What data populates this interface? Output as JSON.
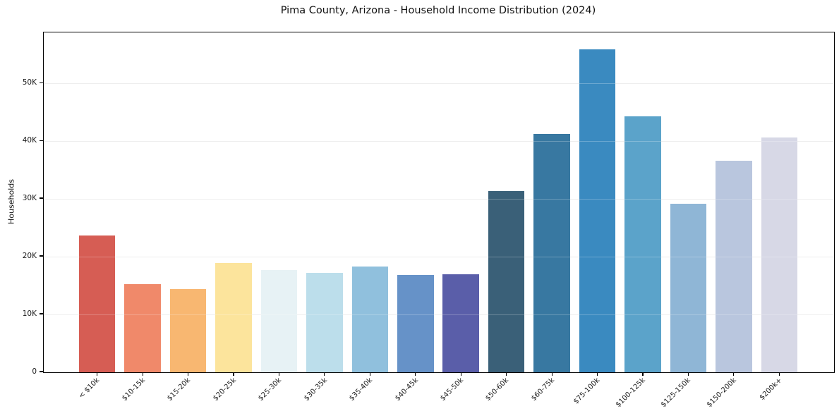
{
  "chart_data": {
    "type": "bar",
    "title": "Pima County, Arizona - Household Income Distribution (2024)",
    "xlabel": "",
    "ylabel": "Households",
    "categories": [
      "< $10k",
      "$10-15k",
      "$15-20k",
      "$20-25k",
      "$25-30k",
      "$30-35k",
      "$35-40k",
      "$40-45k",
      "$45-50k",
      "$50-60k",
      "$60-75k",
      "$75-100k",
      "$100-125k",
      "$125-150k",
      "$150-200k",
      "$200k+"
    ],
    "values": [
      23700,
      15200,
      14400,
      18900,
      17700,
      17200,
      18300,
      16800,
      17000,
      31400,
      41200,
      55900,
      44300,
      29100,
      36600,
      40600
    ],
    "bar_colors": [
      "#d65d54",
      "#f0896a",
      "#f8b771",
      "#fce49c",
      "#e7f2f5",
      "#bcdeeb",
      "#90c0dd",
      "#6692c8",
      "#5a5ea9",
      "#3a6078",
      "#3878a1",
      "#3a8ac0",
      "#5ba3ca",
      "#8fb6d6",
      "#b9c6de",
      "#d7d8e6"
    ],
    "ylim": [
      0,
      58800
    ],
    "yticks": {
      "values": [
        0,
        10000,
        20000,
        30000,
        40000,
        50000
      ],
      "labels": [
        "0",
        "10K",
        "20K",
        "30K",
        "40K",
        "50K"
      ]
    },
    "grid": "horizontal",
    "legend": "none",
    "colors": {
      "background": "#ffffff",
      "grid": "#e9e9e9",
      "spine": "#000000",
      "text": "#111111"
    }
  }
}
